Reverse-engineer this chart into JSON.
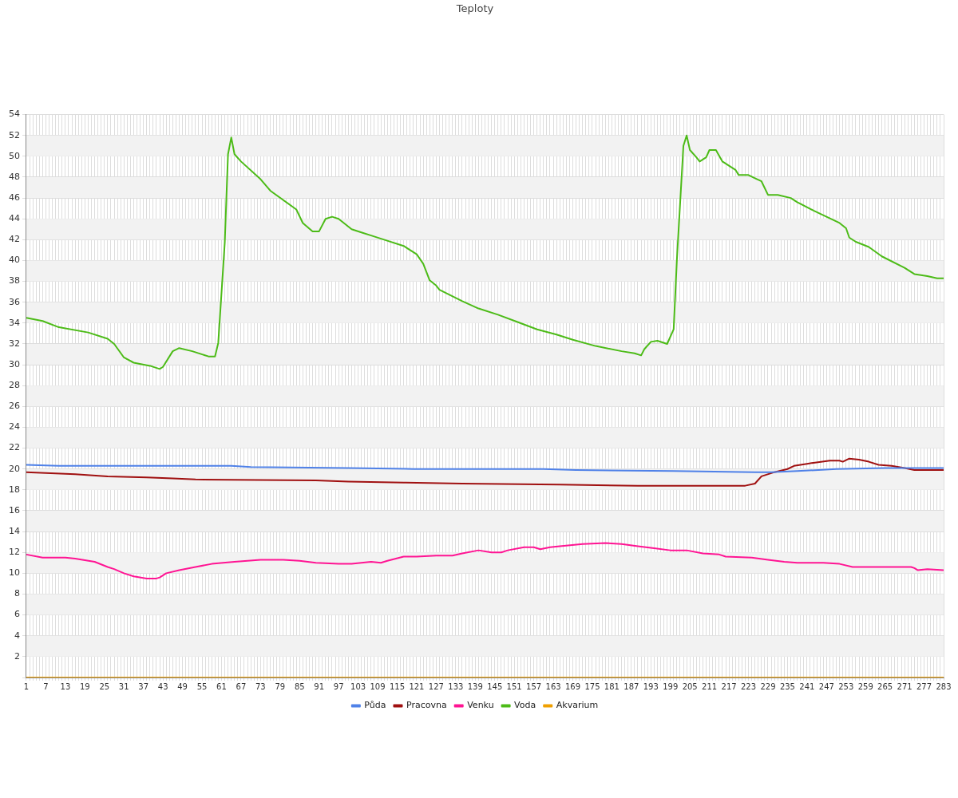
{
  "chart_data": {
    "type": "line",
    "title": "Teploty",
    "xlim": [
      1,
      283
    ],
    "xticks": [
      1,
      {
        "value": 2,
        "label": null
      },
      {
        "value": 3,
        "label": null
      },
      {
        "value": 4,
        "label": null
      },
      {
        "value": 5,
        "label": null
      },
      {
        "value": 6,
        "label": null
      },
      7,
      {
        "value": 8,
        "label": null
      },
      {
        "value": 9,
        "label": null
      },
      {
        "value": 10,
        "label": null
      },
      {
        "value": 11,
        "label": null
      },
      {
        "value": 12,
        "label": null
      },
      13,
      {
        "value": 14,
        "label": null
      },
      {
        "value": 15,
        "label": null
      },
      {
        "value": 16,
        "label": null
      },
      {
        "value": 17,
        "label": null
      },
      {
        "value": 18,
        "label": null
      },
      19,
      {
        "value": 20,
        "label": null
      },
      {
        "value": 21,
        "label": null
      },
      {
        "value": 22,
        "label": null
      },
      {
        "value": 23,
        "label": null
      },
      {
        "value": 24,
        "label": null
      },
      25,
      {
        "value": 26,
        "label": null
      },
      {
        "value": 27,
        "label": null
      },
      {
        "value": 28,
        "label": null
      },
      {
        "value": 29,
        "label": null
      },
      {
        "value": 30,
        "label": null
      },
      31,
      {
        "value": 32,
        "label": null
      },
      {
        "value": 33,
        "label": null
      },
      {
        "value": 34,
        "label": null
      },
      {
        "value": 35,
        "label": null
      },
      {
        "value": 36,
        "label": null
      },
      37,
      {
        "value": 38,
        "label": null
      },
      {
        "value": 39,
        "label": null
      },
      {
        "value": 40,
        "label": null
      },
      {
        "value": 41,
        "label": null
      },
      {
        "value": 42,
        "label": null
      },
      43,
      {
        "value": 44,
        "label": null
      },
      {
        "value": 45,
        "label": null
      },
      {
        "value": 46,
        "label": null
      },
      {
        "value": 47,
        "label": null
      },
      {
        "value": 48,
        "label": null
      },
      49,
      {
        "value": 50,
        "label": null
      },
      {
        "value": 51,
        "label": null
      },
      {
        "value": 52,
        "label": null
      },
      {
        "value": 53,
        "label": null
      },
      {
        "value": 54,
        "label": null
      },
      55,
      {
        "value": 56,
        "label": null
      },
      {
        "value": 57,
        "label": null
      },
      {
        "value": 58,
        "label": null
      },
      {
        "value": 59,
        "label": null
      },
      {
        "value": 60,
        "label": null
      },
      61,
      {
        "value": 62,
        "label": null
      },
      {
        "value": 63,
        "label": null
      },
      {
        "value": 64,
        "label": null
      },
      {
        "value": 65,
        "label": null
      },
      {
        "value": 66,
        "label": null
      },
      67,
      {
        "value": 68,
        "label": null
      },
      {
        "value": 69,
        "label": null
      },
      {
        "value": 70,
        "label": null
      },
      {
        "value": 71,
        "label": null
      },
      {
        "value": 72,
        "label": null
      },
      73,
      {
        "value": 74,
        "label": null
      },
      {
        "value": 75,
        "label": null
      },
      {
        "value": 76,
        "label": null
      },
      {
        "value": 77,
        "label": null
      },
      {
        "value": 78,
        "label": null
      },
      79,
      {
        "value": 80,
        "label": null
      },
      {
        "value": 81,
        "label": null
      },
      {
        "value": 82,
        "label": null
      },
      {
        "value": 83,
        "label": null
      },
      {
        "value": 84,
        "label": null
      },
      85,
      {
        "value": 86,
        "label": null
      },
      {
        "value": 87,
        "label": null
      },
      {
        "value": 88,
        "label": null
      },
      {
        "value": 89,
        "label": null
      },
      {
        "value": 90,
        "label": null
      },
      91,
      {
        "value": 92,
        "label": null
      },
      {
        "value": 93,
        "label": null
      },
      {
        "value": 94,
        "label": null
      },
      {
        "value": 95,
        "label": null
      },
      {
        "value": 96,
        "label": null
      },
      97,
      {
        "value": 98,
        "label": null
      },
      {
        "value": 99,
        "label": null
      },
      {
        "value": 100,
        "label": null
      },
      {
        "value": 101,
        "label": null
      },
      {
        "value": 102,
        "label": null
      },
      103,
      {
        "value": 104,
        "label": null
      },
      {
        "value": 105,
        "label": null
      },
      {
        "value": 106,
        "label": null
      },
      {
        "value": 107,
        "label": null
      },
      {
        "value": 108,
        "label": null
      },
      109,
      {
        "value": 110,
        "label": null
      },
      {
        "value": 111,
        "label": null
      },
      {
        "value": 112,
        "label": null
      },
      {
        "value": 113,
        "label": null
      },
      {
        "value": 114,
        "label": null
      },
      115,
      {
        "value": 116,
        "label": null
      },
      {
        "value": 117,
        "label": null
      },
      {
        "value": 118,
        "label": null
      },
      {
        "value": 119,
        "label": null
      },
      {
        "value": 120,
        "label": null
      },
      121,
      {
        "value": 122,
        "label": null
      },
      {
        "value": 123,
        "label": null
      },
      {
        "value": 124,
        "label": null
      },
      {
        "value": 125,
        "label": null
      },
      {
        "value": 126,
        "label": null
      },
      127,
      {
        "value": 128,
        "label": null
      },
      {
        "value": 129,
        "label": null
      },
      {
        "value": 130,
        "label": null
      },
      {
        "value": 131,
        "label": null
      },
      {
        "value": 132,
        "label": null
      },
      133,
      {
        "value": 134,
        "label": null
      },
      {
        "value": 135,
        "label": null
      },
      {
        "value": 136,
        "label": null
      },
      {
        "value": 137,
        "label": null
      },
      {
        "value": 138,
        "label": null
      },
      139,
      {
        "value": 140,
        "label": null
      },
      {
        "value": 141,
        "label": null
      },
      {
        "value": 142,
        "label": null
      },
      {
        "value": 143,
        "label": null
      },
      {
        "value": 144,
        "label": null
      },
      145,
      {
        "value": 146,
        "label": null
      },
      {
        "value": 147,
        "label": null
      },
      {
        "value": 148,
        "label": null
      },
      {
        "value": 149,
        "label": null
      },
      {
        "value": 150,
        "label": null
      },
      151,
      {
        "value": 152,
        "label": null
      },
      {
        "value": 153,
        "label": null
      },
      {
        "value": 154,
        "label": null
      },
      {
        "value": 155,
        "label": null
      },
      {
        "value": 156,
        "label": null
      },
      157,
      {
        "value": 158,
        "label": null
      },
      {
        "value": 159,
        "label": null
      },
      {
        "value": 160,
        "label": null
      },
      {
        "value": 161,
        "label": null
      },
      {
        "value": 162,
        "label": null
      },
      163,
      {
        "value": 164,
        "label": null
      },
      {
        "value": 165,
        "label": null
      },
      {
        "value": 166,
        "label": null
      },
      {
        "value": 167,
        "label": null
      },
      {
        "value": 168,
        "label": null
      },
      169,
      {
        "value": 170,
        "label": null
      },
      {
        "value": 171,
        "label": null
      },
      {
        "value": 172,
        "label": null
      },
      {
        "value": 173,
        "label": null
      },
      {
        "value": 174,
        "label": null
      },
      175,
      {
        "value": 176,
        "label": null
      },
      {
        "value": 177,
        "label": null
      },
      {
        "value": 178,
        "label": null
      },
      {
        "value": 179,
        "label": null
      },
      {
        "value": 180,
        "label": null
      },
      181,
      {
        "value": 182,
        "label": null
      },
      {
        "value": 183,
        "label": null
      },
      {
        "value": 184,
        "label": null
      },
      {
        "value": 185,
        "label": null
      },
      {
        "value": 186,
        "label": null
      },
      187,
      {
        "value": 188,
        "label": null
      },
      {
        "value": 189,
        "label": null
      },
      {
        "value": 190,
        "label": null
      },
      {
        "value": 191,
        "label": null
      },
      {
        "value": 192,
        "label": null
      },
      193,
      {
        "value": 194,
        "label": null
      },
      {
        "value": 195,
        "label": null
      },
      {
        "value": 196,
        "label": null
      },
      {
        "value": 197,
        "label": null
      },
      {
        "value": 198,
        "label": null
      },
      199,
      {
        "value": 200,
        "label": null
      },
      {
        "value": 201,
        "label": null
      },
      {
        "value": 202,
        "label": null
      },
      {
        "value": 203,
        "label": null
      },
      {
        "value": 204,
        "label": null
      },
      205,
      {
        "value": 206,
        "label": null
      },
      {
        "value": 207,
        "label": null
      },
      {
        "value": 208,
        "label": null
      },
      {
        "value": 209,
        "label": null
      },
      {
        "value": 210,
        "label": null
      },
      211,
      {
        "value": 212,
        "label": null
      },
      {
        "value": 213,
        "label": null
      },
      {
        "value": 214,
        "label": null
      },
      {
        "value": 215,
        "label": null
      },
      {
        "value": 216,
        "label": null
      },
      217,
      {
        "value": 218,
        "label": null
      },
      {
        "value": 219,
        "label": null
      },
      {
        "value": 220,
        "label": null
      },
      {
        "value": 221,
        "label": null
      },
      {
        "value": 222,
        "label": null
      },
      223,
      {
        "value": 224,
        "label": null
      },
      {
        "value": 225,
        "label": null
      },
      {
        "value": 226,
        "label": null
      },
      {
        "value": 227,
        "label": null
      },
      {
        "value": 228,
        "label": null
      },
      229,
      {
        "value": 230,
        "label": null
      },
      {
        "value": 231,
        "label": null
      },
      {
        "value": 232,
        "label": null
      },
      {
        "value": 233,
        "label": null
      },
      {
        "value": 234,
        "label": null
      },
      235,
      {
        "value": 236,
        "label": null
      },
      {
        "value": 237,
        "label": null
      },
      {
        "value": 238,
        "label": null
      },
      {
        "value": 239,
        "label": null
      },
      {
        "value": 240,
        "label": null
      },
      241,
      {
        "value": 242,
        "label": null
      },
      {
        "value": 243,
        "label": null
      },
      {
        "value": 244,
        "label": null
      },
      {
        "value": 245,
        "label": null
      },
      {
        "value": 246,
        "label": null
      },
      247,
      {
        "value": 248,
        "label": null
      },
      {
        "value": 249,
        "label": null
      },
      {
        "value": 250,
        "label": null
      },
      {
        "value": 251,
        "label": null
      },
      {
        "value": 252,
        "label": null
      },
      253,
      {
        "value": 254,
        "label": null
      },
      {
        "value": 255,
        "label": null
      },
      {
        "value": 256,
        "label": null
      },
      {
        "value": 257,
        "label": null
      },
      {
        "value": 258,
        "label": null
      },
      259,
      {
        "value": 260,
        "label": null
      },
      {
        "value": 261,
        "label": null
      },
      {
        "value": 262,
        "label": null
      },
      {
        "value": 263,
        "label": null
      },
      {
        "value": 264,
        "label": null
      },
      265,
      {
        "value": 266,
        "label": null
      },
      {
        "value": 267,
        "label": null
      },
      {
        "value": 268,
        "label": null
      },
      {
        "value": 269,
        "label": null
      },
      {
        "value": 270,
        "label": null
      },
      271,
      {
        "value": 272,
        "label": null
      },
      {
        "value": 273,
        "label": null
      },
      {
        "value": 274,
        "label": null
      },
      {
        "value": 275,
        "label": null
      },
      {
        "value": 276,
        "label": null
      },
      277,
      {
        "value": 278,
        "label": null
      },
      {
        "value": 279,
        "label": null
      },
      {
        "value": 280,
        "label": null
      },
      {
        "value": 281,
        "label": null
      },
      {
        "value": 282,
        "label": null
      },
      283
    ],
    "ylim": [
      0,
      54
    ],
    "yticks": [
      {
        "value": 0,
        "label": null
      },
      2,
      4,
      6,
      8,
      10,
      12,
      14,
      16,
      18,
      20,
      22,
      24,
      26,
      28,
      30,
      32,
      34,
      36,
      38,
      40,
      42,
      44,
      46,
      48,
      50,
      52,
      54
    ],
    "grid": true,
    "legend": "bottom",
    "marker": "none",
    "line_style": "solid",
    "bands": [
      {
        "axis": "y",
        "from": 2,
        "to": 4,
        "color": "#f2f2f2"
      },
      {
        "axis": "y",
        "from": 6,
        "to": 8,
        "color": "#f2f2f2"
      },
      {
        "axis": "y",
        "from": 10,
        "to": 12,
        "color": "#f2f2f2"
      },
      {
        "axis": "y",
        "from": 14,
        "to": 16,
        "color": "#f2f2f2"
      },
      {
        "axis": "y",
        "from": 18,
        "to": 20,
        "color": "#f2f2f2"
      },
      {
        "axis": "y",
        "from": 22,
        "to": 24,
        "color": "#f2f2f2"
      },
      {
        "axis": "y",
        "from": 26,
        "to": 28,
        "color": "#f2f2f2"
      },
      {
        "axis": "y",
        "from": 30,
        "to": 32,
        "color": "#f2f2f2"
      },
      {
        "axis": "y",
        "from": 34,
        "to": 36,
        "color": "#f2f2f2"
      },
      {
        "axis": "y",
        "from": 38,
        "to": 40,
        "color": "#f2f2f2"
      },
      {
        "axis": "y",
        "from": 42,
        "to": 44,
        "color": "#f2f2f2"
      },
      {
        "axis": "y",
        "from": 46,
        "to": 48,
        "color": "#f2f2f2"
      },
      {
        "axis": "y",
        "from": 50,
        "to": 52,
        "color": "#f2f2f2"
      }
    ],
    "series": [
      {
        "name": "Půda",
        "color": "#4f81e8",
        "x": [
          1,
          11,
          64,
          70,
          100,
          120,
          160,
          170,
          200,
          225,
          230,
          238,
          250,
          265,
          283
        ],
        "values": [
          20.4,
          20.3,
          20.3,
          20.2,
          20.1,
          20.0,
          20.0,
          19.9,
          19.8,
          19.7,
          19.7,
          19.8,
          20.0,
          20.1,
          20.1
        ]
      },
      {
        "name": "Pracovna",
        "color": "#a01010",
        "x": [
          1,
          16,
          26,
          38,
          46,
          53,
          90,
          100,
          117,
          135,
          165,
          189,
          222,
          225,
          227,
          231,
          235,
          237,
          241,
          243,
          248,
          251,
          252,
          254,
          257,
          260,
          263,
          267,
          271,
          274,
          283
        ],
        "values": [
          19.7,
          19.5,
          19.3,
          19.2,
          19.1,
          19.0,
          18.9,
          18.8,
          18.7,
          18.6,
          18.5,
          18.4,
          18.4,
          18.6,
          19.3,
          19.7,
          20.0,
          20.3,
          20.5,
          20.6,
          20.8,
          20.8,
          20.7,
          21.0,
          20.9,
          20.7,
          20.4,
          20.3,
          20.1,
          19.9,
          19.9
        ]
      },
      {
        "name": "Venku",
        "color": "#ff1493",
        "x": [
          1,
          6,
          13,
          16,
          22,
          26,
          28,
          31,
          34,
          38,
          41,
          42,
          44,
          48,
          53,
          58,
          65,
          73,
          80,
          85,
          90,
          97,
          101,
          107,
          110,
          112,
          117,
          121,
          127,
          132,
          135,
          140,
          144,
          147,
          149,
          154,
          157,
          159,
          162,
          165,
          172,
          179,
          184,
          189,
          194,
          199,
          204,
          209,
          214,
          216,
          224,
          229,
          234,
          238,
          246,
          251,
          255,
          271,
          273,
          274,
          275,
          278,
          283
        ],
        "values": [
          11.8,
          11.5,
          11.5,
          11.4,
          11.1,
          10.6,
          10.4,
          10.0,
          9.7,
          9.5,
          9.5,
          9.6,
          10.0,
          10.3,
          10.6,
          10.9,
          11.1,
          11.3,
          11.3,
          11.2,
          11.0,
          10.9,
          10.9,
          11.1,
          11.0,
          11.2,
          11.6,
          11.6,
          11.7,
          11.7,
          11.9,
          12.2,
          12.0,
          12.0,
          12.2,
          12.5,
          12.5,
          12.3,
          12.5,
          12.6,
          12.8,
          12.9,
          12.8,
          12.6,
          12.4,
          12.2,
          12.2,
          11.9,
          11.8,
          11.6,
          11.5,
          11.3,
          11.1,
          11.0,
          11.0,
          10.9,
          10.6,
          10.6,
          10.6,
          10.5,
          10.3,
          10.4,
          10.3
        ]
      },
      {
        "name": "Voda",
        "color": "#4cbb17",
        "x": [
          1,
          6,
          11,
          20,
          26,
          28,
          31,
          34,
          39,
          42,
          43,
          46,
          48,
          52,
          57,
          59,
          60,
          62,
          63,
          64,
          65,
          67,
          73,
          76,
          84,
          86,
          89,
          91,
          93,
          95,
          97,
          101,
          104,
          107,
          111,
          117,
          121,
          123,
          125,
          127,
          128,
          135,
          140,
          146,
          152,
          158,
          164,
          169,
          176,
          184,
          188,
          190,
          191,
          193,
          195,
          198,
          200,
          201,
          203,
          204,
          205,
          207,
          208,
          210,
          211,
          213,
          215,
          219,
          220,
          223,
          225,
          227,
          229,
          232,
          236,
          238,
          243,
          247,
          251,
          253,
          254,
          256,
          260,
          264,
          271,
          274,
          278,
          281,
          283
        ],
        "values": [
          34.5,
          34.2,
          33.6,
          33.1,
          32.5,
          32.0,
          30.7,
          30.2,
          29.9,
          29.6,
          29.8,
          31.3,
          31.6,
          31.3,
          30.8,
          30.8,
          32.1,
          41.7,
          50.2,
          51.8,
          50.2,
          49.5,
          47.8,
          46.7,
          44.9,
          43.6,
          42.8,
          42.8,
          44.0,
          44.2,
          44.0,
          43.0,
          42.7,
          42.4,
          42.0,
          41.4,
          40.6,
          39.7,
          38.1,
          37.6,
          37.2,
          36.1,
          35.4,
          34.8,
          34.1,
          33.4,
          32.9,
          32.4,
          31.8,
          31.3,
          31.1,
          30.9,
          31.5,
          32.2,
          32.3,
          32.0,
          33.4,
          40.1,
          51.0,
          52.0,
          50.6,
          49.9,
          49.5,
          49.9,
          50.6,
          50.6,
          49.5,
          48.7,
          48.2,
          48.2,
          47.9,
          47.6,
          46.3,
          46.3,
          46.0,
          45.6,
          44.8,
          44.2,
          43.6,
          43.1,
          42.2,
          41.8,
          41.3,
          40.4,
          39.3,
          38.7,
          38.5,
          38.3,
          38.3
        ]
      },
      {
        "name": "Akvarium",
        "color": "#f0a000",
        "x": [
          1,
          283
        ],
        "values": [
          0,
          0
        ]
      }
    ]
  }
}
